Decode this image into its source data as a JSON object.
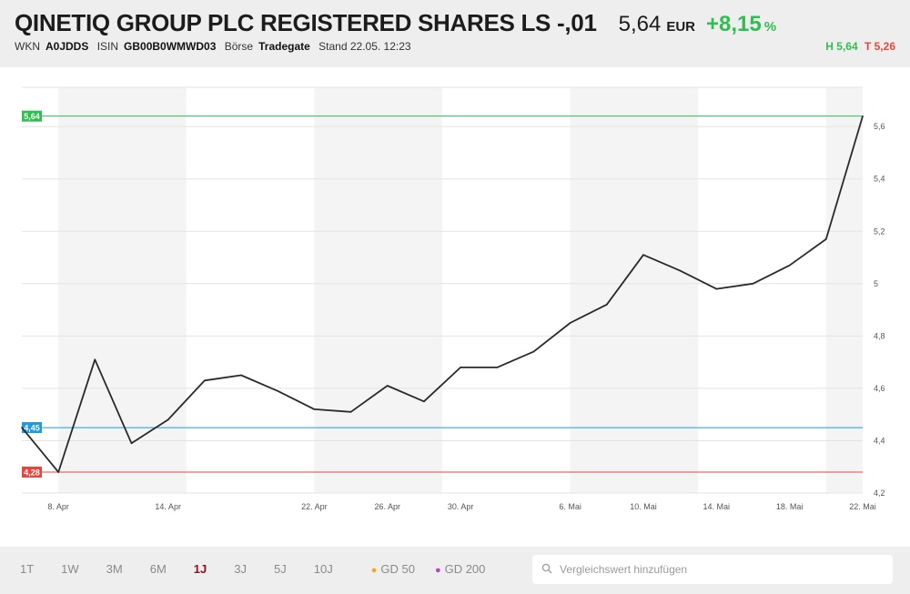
{
  "header": {
    "title": "QINETIQ GROUP PLC REGISTERED SHARES LS -,01",
    "price": "5,64",
    "currency": "EUR",
    "change": "+8,15",
    "change_unit": "%",
    "wkn_label": "WKN",
    "wkn": "A0JDDS",
    "isin_label": "ISIN",
    "isin": "GB00B0WMWD03",
    "exchange_label": "Börse",
    "exchange": "Tradegate",
    "stand": "Stand 22.05. 12:23",
    "high": "H 5,64",
    "low": "T 5,26"
  },
  "chart_data": {
    "type": "line",
    "x": [
      "2024-04-06",
      "2024-04-08",
      "2024-04-10",
      "2024-04-12",
      "2024-04-14",
      "2024-04-16",
      "2024-04-18",
      "2024-04-20",
      "2024-04-22",
      "2024-04-24",
      "2024-04-26",
      "2024-04-28",
      "2024-04-30",
      "2024-05-02",
      "2024-05-04",
      "2024-05-06",
      "2024-05-08",
      "2024-05-10",
      "2024-05-12",
      "2024-05-14",
      "2024-05-16",
      "2024-05-18",
      "2024-05-20",
      "2024-05-22"
    ],
    "series": [
      {
        "values": [
          4.45,
          4.28,
          4.71,
          4.39,
          4.48,
          4.63,
          4.65,
          4.59,
          4.52,
          4.51,
          4.61,
          4.55,
          4.68,
          4.68,
          4.74,
          4.85,
          4.92,
          5.11,
          5.05,
          4.98,
          5.0,
          5.07,
          5.17,
          5.64
        ]
      }
    ],
    "x_ticks": [
      "8. Apr",
      "14. Apr",
      "22. Apr",
      "26. Apr",
      "30. Apr",
      "6. Mai",
      "10. Mai",
      "14. Mai",
      "18. Mai",
      "22. Mai"
    ],
    "y_ticks": [
      "4,2",
      "4,4",
      "4,6",
      "4,8",
      "5",
      "5,2",
      "5,4",
      "5,6"
    ],
    "ylim": [
      4.2,
      5.75
    ],
    "reference_lines": [
      {
        "label": "5,64",
        "value": 5.64,
        "color": "#2fbe4f"
      },
      {
        "label": "4,45",
        "value": 4.45,
        "color": "#1e9be0"
      },
      {
        "label": "4,28",
        "value": 4.28,
        "color": "#e8463d"
      }
    ],
    "line_color": "#2a2a2a",
    "grid": true
  },
  "footer": {
    "tabs": [
      {
        "label": "1T",
        "active": false
      },
      {
        "label": "1W",
        "active": false
      },
      {
        "label": "3M",
        "active": false
      },
      {
        "label": "6M",
        "active": false
      },
      {
        "label": "1J",
        "active": true
      },
      {
        "label": "3J",
        "active": false
      },
      {
        "label": "5J",
        "active": false
      },
      {
        "label": "10J",
        "active": false
      }
    ],
    "gd50": "GD 50",
    "gd50_color": "#f5a623",
    "gd200": "GD 200",
    "gd200_color": "#b844c8",
    "search_placeholder": "Vergleichswert hinzufügen",
    "search_icon": "search-icon"
  }
}
